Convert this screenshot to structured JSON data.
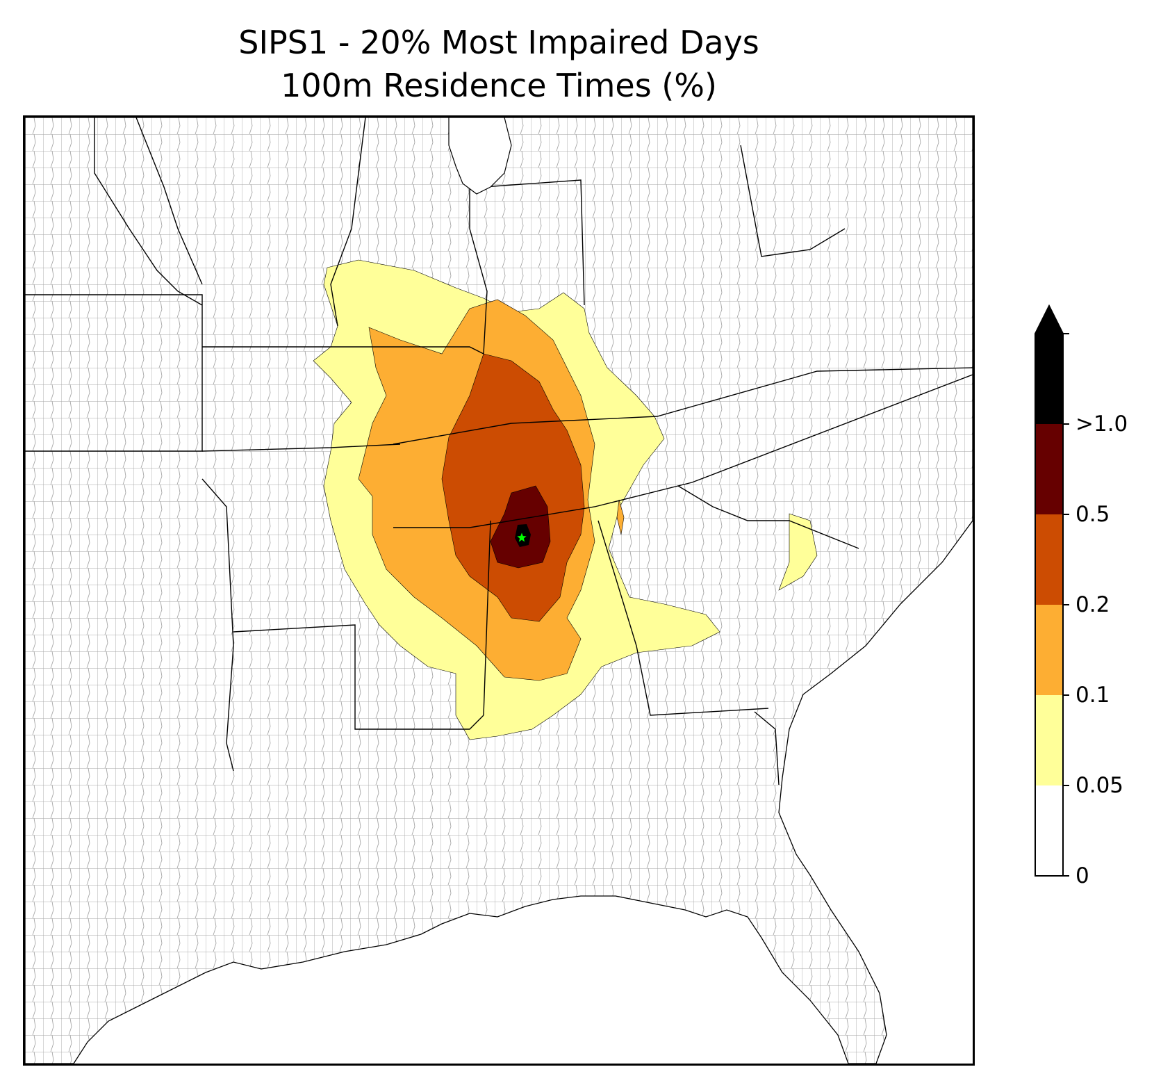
{
  "title": {
    "line1": "SIPS1 - 20% Most Impaired Days",
    "line2": "100m Residence Times (%)"
  },
  "colorbar": {
    "extend": "max",
    "tick_labels": [
      "0",
      "0.05",
      "0.1",
      "0.2",
      "0.5",
      ">1.0"
    ],
    "bins": [
      {
        "from": "0",
        "to": "0.05",
        "color": "#ffffff"
      },
      {
        "from": "0.05",
        "to": "0.1",
        "color": "#ffff99"
      },
      {
        "from": "0.1",
        "to": "0.2",
        "color": "#fdae33"
      },
      {
        "from": "0.2",
        "to": "0.5",
        "color": "#cc4c02"
      },
      {
        "from": "0.5",
        "to": "1.0",
        "color": "#660000"
      },
      {
        "from": "1.0",
        "to": "max",
        "color": "#000000"
      }
    ]
  },
  "map": {
    "source_marker": {
      "symbol": "star",
      "color": "#00ff00"
    },
    "county_line_color": "#a0a0a0",
    "state_line_color": "#000000"
  }
}
